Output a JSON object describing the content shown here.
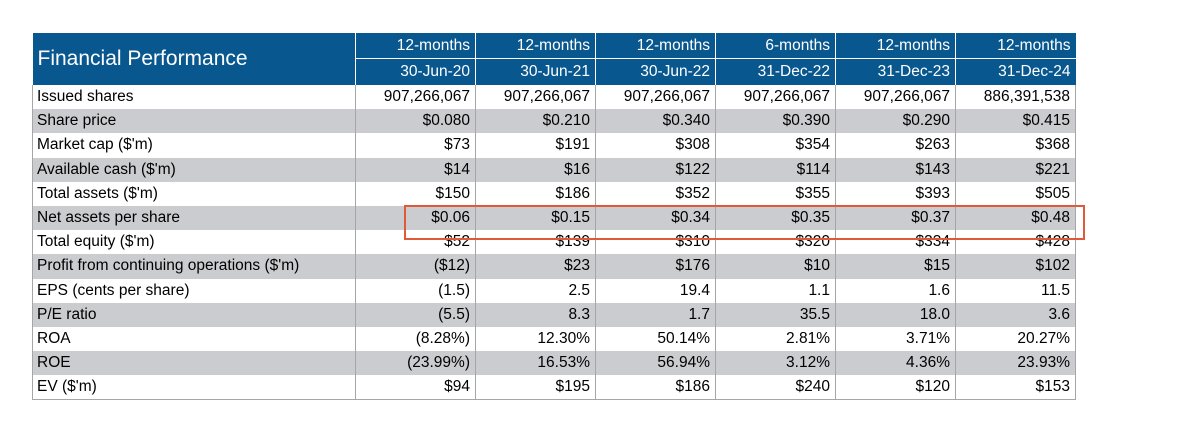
{
  "table": {
    "title": "Financial Performance",
    "periods": [
      "12-months",
      "12-months",
      "12-months",
      "6-months",
      "12-months",
      "12-months"
    ],
    "dates": [
      "30-Jun-20",
      "30-Jun-21",
      "30-Jun-22",
      "31-Dec-22",
      "31-Dec-23",
      "31-Dec-24"
    ],
    "rows": [
      {
        "label": "Issued shares",
        "values": [
          "907,266,067",
          "907,266,067",
          "907,266,067",
          "907,266,067",
          "907,266,067",
          "886,391,538"
        ]
      },
      {
        "label": "Share price",
        "values": [
          "$0.080",
          "$0.210",
          "$0.340",
          "$0.390",
          "$0.290",
          "$0.415"
        ]
      },
      {
        "label": "Market cap ($'m)",
        "values": [
          "$73",
          "$191",
          "$308",
          "$354",
          "$263",
          "$368"
        ]
      },
      {
        "label": "Available cash ($'m)",
        "values": [
          "$14",
          "$16",
          "$122",
          "$114",
          "$143",
          "$221"
        ]
      },
      {
        "label": "Total assets ($'m)",
        "values": [
          "$150",
          "$186",
          "$352",
          "$355",
          "$393",
          "$505"
        ]
      },
      {
        "label": "Net assets per share",
        "values": [
          "$0.06",
          "$0.15",
          "$0.34",
          "$0.35",
          "$0.37",
          "$0.48"
        ]
      },
      {
        "label": "Total equity ($'m)",
        "values": [
          "$52",
          "$139",
          "$310",
          "$320",
          "$334",
          "$428"
        ]
      },
      {
        "label": "Profit from continuing operations ($'m)",
        "values": [
          "($12)",
          "$23",
          "$176",
          "$10",
          "$15",
          "$102"
        ]
      },
      {
        "label": "EPS (cents per share)",
        "values": [
          "(1.5)",
          "2.5",
          "19.4",
          "1.1",
          "1.6",
          "11.5"
        ]
      },
      {
        "label": "P/E ratio",
        "values": [
          "(5.5)",
          "8.3",
          "1.7",
          "35.5",
          "18.0",
          "3.6"
        ]
      },
      {
        "label": "ROA",
        "values": [
          "(8.28%)",
          "12.30%",
          "50.14%",
          "2.81%",
          "3.71%",
          "20.27%"
        ]
      },
      {
        "label": "ROE",
        "values": [
          "(23.99%)",
          "16.53%",
          "56.94%",
          "3.12%",
          "4.36%",
          "23.93%"
        ]
      },
      {
        "label": "EV ($'m)",
        "values": [
          "$94",
          "$195",
          "$186",
          "$240",
          "$120",
          "$153"
        ]
      }
    ]
  },
  "colors": {
    "header_bg": "#08578e",
    "alt_row_bg": "#cbcccf",
    "highlight_border": "#e05a3a"
  }
}
